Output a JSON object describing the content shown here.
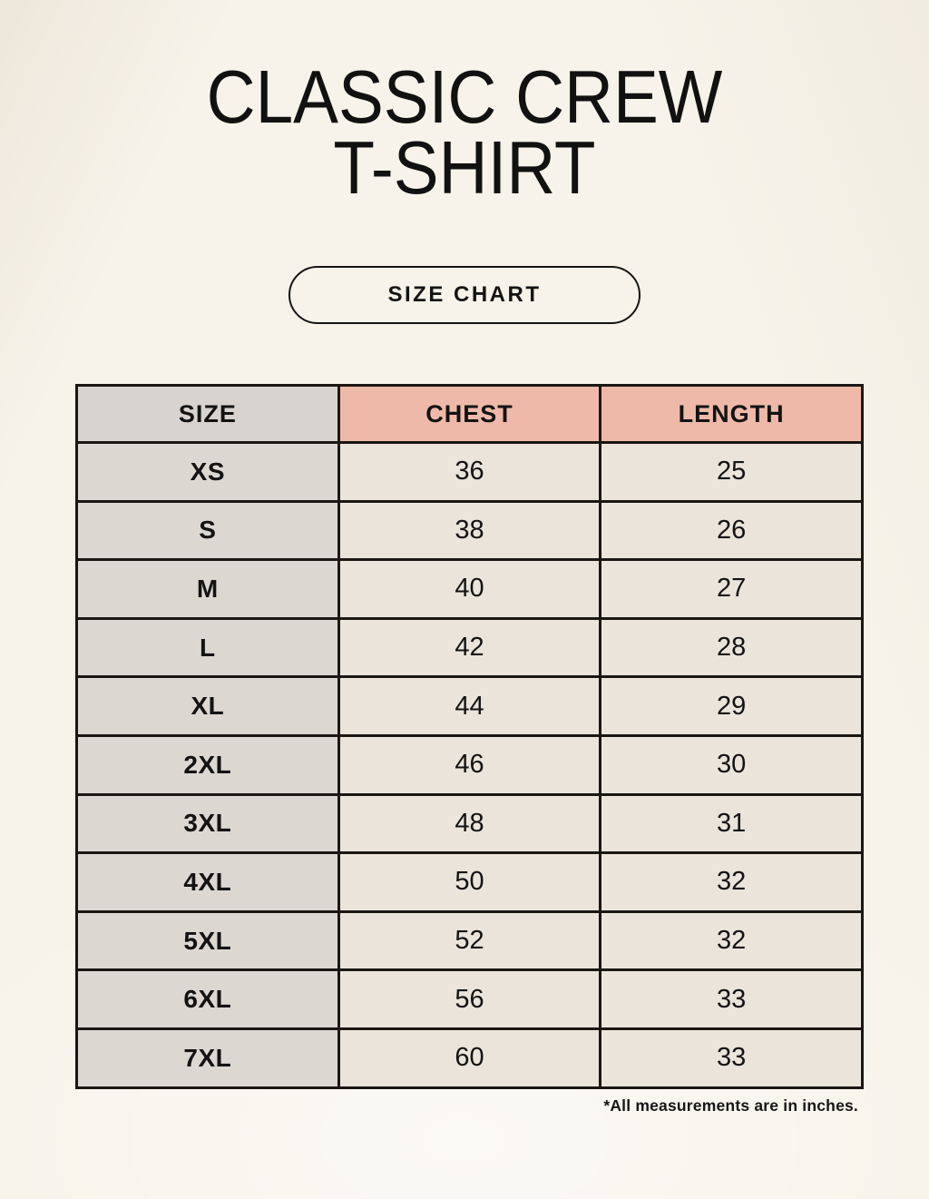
{
  "title": {
    "line1": "CLASSIC CREW",
    "line2": "T-SHIRT"
  },
  "size_chart_button": {
    "label": "SIZE CHART"
  },
  "table": {
    "headers": [
      "SIZE",
      "CHEST",
      "LENGTH"
    ],
    "rows": [
      {
        "size": "XS",
        "chest": "36",
        "length": "25"
      },
      {
        "size": "S",
        "chest": "38",
        "length": "26"
      },
      {
        "size": "M",
        "chest": "40",
        "length": "27"
      },
      {
        "size": "L",
        "chest": "42",
        "length": "28"
      },
      {
        "size": "XL",
        "chest": "44",
        "length": "29"
      },
      {
        "size": "2XL",
        "chest": "46",
        "length": "30"
      },
      {
        "size": "3XL",
        "chest": "48",
        "length": "31"
      },
      {
        "size": "4XL",
        "chest": "50",
        "length": "32"
      },
      {
        "size": "5XL",
        "chest": "52",
        "length": "32"
      },
      {
        "size": "6XL",
        "chest": "56",
        "length": "33"
      },
      {
        "size": "7XL",
        "chest": "60",
        "length": "33"
      }
    ]
  },
  "footnote": "*All measurements are in inches.",
  "colors": {
    "page-bg": "#f7f3ea",
    "accent": "#efb9a9",
    "header-size-bg": "#d9d3cf",
    "body-size-bg": "#ddd7d2",
    "cell-bg": "#eae4da",
    "border": "#1a1713",
    "text": "#131313"
  },
  "chart_data": {
    "type": "table",
    "title": "CLASSIC CREW T-SHIRT — SIZE CHART",
    "columns": [
      "SIZE",
      "CHEST",
      "LENGTH"
    ],
    "units": "inches",
    "rows": [
      [
        "XS",
        36,
        25
      ],
      [
        "S",
        38,
        26
      ],
      [
        "M",
        40,
        27
      ],
      [
        "L",
        42,
        28
      ],
      [
        "XL",
        44,
        29
      ],
      [
        "2XL",
        46,
        30
      ],
      [
        "3XL",
        48,
        31
      ],
      [
        "4XL",
        50,
        32
      ],
      [
        "5XL",
        52,
        32
      ],
      [
        "6XL",
        56,
        33
      ],
      [
        "7XL",
        60,
        33
      ]
    ],
    "note": "*All measurements are in inches."
  }
}
